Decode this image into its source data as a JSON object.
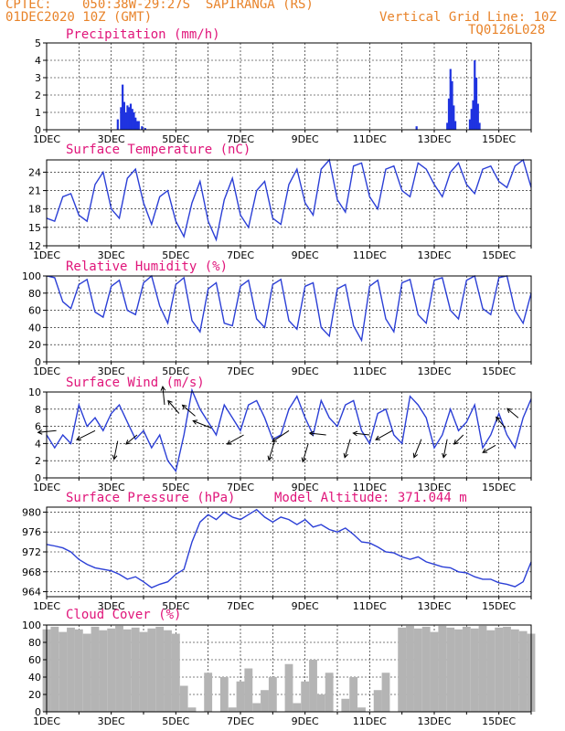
{
  "header": {
    "source": "CPTEC:",
    "location": "050:38W-29:27S  SAPIRANGA (RS)",
    "date": "01DEC2020 10Z (GMT)",
    "grid_note": "Vertical Grid Line: 10Z",
    "run_id": "TQ0126L028"
  },
  "colors": {
    "header": "#e8832a",
    "title": "#e0157a",
    "line": "#2b3fd6",
    "bar": "#1f33e0",
    "cloud": "#b4b4b4",
    "grid": "#000000"
  },
  "x_tick_labels": [
    "1DEC",
    "3DEC",
    "5DEC",
    "7DEC",
    "9DEC",
    "11DEC",
    "13DEC",
    "15DEC"
  ],
  "x_range_days": [
    0,
    15
  ],
  "chart_data": [
    {
      "id": "precip",
      "type": "bar",
      "title": "Precipitation (mm/h)",
      "ylim": [
        0,
        5
      ],
      "yticks": [
        0,
        1,
        2,
        3,
        4,
        5
      ],
      "x": [
        2.2,
        2.3,
        2.35,
        2.4,
        2.45,
        2.5,
        2.55,
        2.6,
        2.65,
        2.7,
        2.75,
        2.8,
        2.85,
        2.95,
        3.05,
        11.45,
        12.4,
        12.45,
        12.5,
        12.55,
        12.6,
        12.65,
        13.1,
        13.15,
        13.2,
        13.25,
        13.3,
        13.35,
        13.4
      ],
      "values": [
        0.6,
        1.3,
        2.6,
        1.6,
        1.0,
        1.4,
        1.3,
        1.5,
        1.2,
        1.0,
        0.7,
        0.5,
        0.5,
        0.2,
        0.1,
        0.2,
        0.4,
        1.8,
        3.5,
        2.8,
        1.4,
        0.5,
        0.6,
        1.2,
        1.7,
        4.0,
        3.0,
        1.5,
        0.4
      ]
    },
    {
      "id": "temp",
      "type": "line",
      "title": "Surface Temperature (nC)",
      "ylim": [
        12,
        26
      ],
      "yticks": [
        12,
        15,
        18,
        21,
        24
      ],
      "x": [
        0,
        0.25,
        0.5,
        0.75,
        1.0,
        1.25,
        1.5,
        1.75,
        2.0,
        2.25,
        2.5,
        2.75,
        3.0,
        3.25,
        3.5,
        3.75,
        4.0,
        4.25,
        4.5,
        4.75,
        5.0,
        5.25,
        5.5,
        5.75,
        6.0,
        6.25,
        6.5,
        6.75,
        7.0,
        7.25,
        7.5,
        7.75,
        8.0,
        8.25,
        8.5,
        8.75,
        9.0,
        9.25,
        9.5,
        9.75,
        10.0,
        10.25,
        10.5,
        10.75,
        11.0,
        11.25,
        11.5,
        11.75,
        12.0,
        12.25,
        12.5,
        12.75,
        13.0,
        13.25,
        13.5,
        13.75,
        14.0,
        14.25,
        14.5,
        14.75,
        15.0
      ],
      "values": [
        16.5,
        16.0,
        20.0,
        20.5,
        17.0,
        16.0,
        22.0,
        24.0,
        18.0,
        16.5,
        23.0,
        24.5,
        19.0,
        15.5,
        20.0,
        21.0,
        16.0,
        13.5,
        19.0,
        22.5,
        16.0,
        13.0,
        19.5,
        23.0,
        17.0,
        15.0,
        21.0,
        22.5,
        16.5,
        15.5,
        22.0,
        24.5,
        19.0,
        17.0,
        24.5,
        26.0,
        19.5,
        17.5,
        25.0,
        25.5,
        20.0,
        18.0,
        24.5,
        25.0,
        21.0,
        20.0,
        25.5,
        24.5,
        22.0,
        20.0,
        24.0,
        25.5,
        22.0,
        20.5,
        24.5,
        25.0,
        22.5,
        21.5,
        25.0,
        26.0,
        21.5
      ]
    },
    {
      "id": "rh",
      "type": "line",
      "title": "Relative Humidity (%)",
      "ylim": [
        0,
        100
      ],
      "yticks": [
        0,
        20,
        40,
        60,
        80,
        100
      ],
      "x": [
        0,
        0.25,
        0.5,
        0.75,
        1.0,
        1.25,
        1.5,
        1.75,
        2.0,
        2.25,
        2.5,
        2.75,
        3.0,
        3.25,
        3.5,
        3.75,
        4.0,
        4.25,
        4.5,
        4.75,
        5.0,
        5.25,
        5.5,
        5.75,
        6.0,
        6.25,
        6.5,
        6.75,
        7.0,
        7.25,
        7.5,
        7.75,
        8.0,
        8.25,
        8.5,
        8.75,
        9.0,
        9.25,
        9.5,
        9.75,
        10.0,
        10.25,
        10.5,
        10.75,
        11.0,
        11.25,
        11.5,
        11.75,
        12.0,
        12.25,
        12.5,
        12.75,
        13.0,
        13.25,
        13.5,
        13.75,
        14.0,
        14.25,
        14.5,
        14.75,
        15.0
      ],
      "values": [
        100,
        98,
        70,
        62,
        90,
        96,
        58,
        52,
        88,
        95,
        60,
        55,
        92,
        100,
        65,
        45,
        90,
        98,
        48,
        35,
        85,
        92,
        45,
        42,
        88,
        95,
        50,
        40,
        90,
        96,
        48,
        38,
        88,
        92,
        40,
        30,
        85,
        90,
        42,
        25,
        88,
        95,
        50,
        35,
        92,
        96,
        55,
        45,
        95,
        98,
        60,
        50,
        95,
        100,
        62,
        55,
        98,
        100,
        60,
        45,
        80
      ]
    },
    {
      "id": "wind",
      "type": "line",
      "title": "Surface Wind (m/s)",
      "ylim": [
        0,
        10
      ],
      "yticks": [
        0,
        2,
        4,
        6,
        8,
        10
      ],
      "x": [
        0,
        0.25,
        0.5,
        0.75,
        1.0,
        1.25,
        1.5,
        1.75,
        2.0,
        2.25,
        2.5,
        2.75,
        3.0,
        3.25,
        3.5,
        3.75,
        4.0,
        4.25,
        4.5,
        4.75,
        5.0,
        5.25,
        5.5,
        5.75,
        6.0,
        6.25,
        6.5,
        6.75,
        7.0,
        7.25,
        7.5,
        7.75,
        8.0,
        8.25,
        8.5,
        8.75,
        9.0,
        9.25,
        9.5,
        9.75,
        10.0,
        10.25,
        10.5,
        10.75,
        11.0,
        11.25,
        11.5,
        11.75,
        12.0,
        12.25,
        12.5,
        12.75,
        13.0,
        13.25,
        13.5,
        13.75,
        14.0,
        14.25,
        14.5,
        14.75,
        15.0
      ],
      "values": [
        5.0,
        3.5,
        5.0,
        4.0,
        8.5,
        6.0,
        7.0,
        5.5,
        7.5,
        8.5,
        6.5,
        4.5,
        5.5,
        3.5,
        5.0,
        2.0,
        0.8,
        5.0,
        10.2,
        8.0,
        6.5,
        5.0,
        8.5,
        7.0,
        5.5,
        8.5,
        9.0,
        7.0,
        4.5,
        5.0,
        8.0,
        9.5,
        7.0,
        5.0,
        9.0,
        7.0,
        6.0,
        8.5,
        9.0,
        5.5,
        4.0,
        7.5,
        8.0,
        5.0,
        4.0,
        9.5,
        8.5,
        7.0,
        3.5,
        5.0,
        8.0,
        5.5,
        6.5,
        8.5,
        3.5,
        5.0,
        7.5,
        5.0,
        3.5,
        7.0,
        9.2
      ],
      "arrows": [
        {
          "x": 0.3,
          "y": 5.5,
          "u": -1.0,
          "v": -0.1
        },
        {
          "x": 1.5,
          "y": 5.5,
          "u": -1.0,
          "v": -0.5
        },
        {
          "x": 2.2,
          "y": 4.3,
          "u": -0.2,
          "v": -1.0
        },
        {
          "x": 2.8,
          "y": 5.0,
          "u": -0.6,
          "v": -0.5
        },
        {
          "x": 3.65,
          "y": 8.5,
          "u": -0.1,
          "v": 1.0
        },
        {
          "x": 4.1,
          "y": 7.5,
          "u": -0.6,
          "v": 0.7
        },
        {
          "x": 4.6,
          "y": 7.2,
          "u": -0.7,
          "v": 0.6
        },
        {
          "x": 5.1,
          "y": 5.8,
          "u": -1.0,
          "v": 0.4
        },
        {
          "x": 6.1,
          "y": 5.0,
          "u": -0.9,
          "v": -0.5
        },
        {
          "x": 7.05,
          "y": 4.2,
          "u": -0.3,
          "v": -1.0
        },
        {
          "x": 7.5,
          "y": 5.5,
          "u": -0.9,
          "v": -0.6
        },
        {
          "x": 8.1,
          "y": 4.0,
          "u": -0.3,
          "v": -1.0
        },
        {
          "x": 8.65,
          "y": 5.0,
          "u": -0.9,
          "v": 0.1
        },
        {
          "x": 9.4,
          "y": 4.5,
          "u": -0.3,
          "v": -1.0
        },
        {
          "x": 10.0,
          "y": 5.0,
          "u": -0.9,
          "v": 0.1
        },
        {
          "x": 10.7,
          "y": 5.5,
          "u": -0.9,
          "v": -0.5
        },
        {
          "x": 11.6,
          "y": 4.5,
          "u": -0.4,
          "v": -1.0
        },
        {
          "x": 12.4,
          "y": 4.5,
          "u": -0.2,
          "v": -1.0
        },
        {
          "x": 12.9,
          "y": 5.0,
          "u": -0.5,
          "v": -0.5
        },
        {
          "x": 13.9,
          "y": 3.8,
          "u": -0.7,
          "v": -0.4
        },
        {
          "x": 14.2,
          "y": 5.8,
          "u": -0.5,
          "v": 0.6
        },
        {
          "x": 14.6,
          "y": 7.0,
          "u": -0.6,
          "v": 0.5
        }
      ]
    },
    {
      "id": "pres",
      "type": "line",
      "title": "Surface Pressure (hPa)",
      "annotation": "Model Altitude: 371.044 m",
      "ylim": [
        963,
        981
      ],
      "yticks": [
        964,
        968,
        972,
        976,
        980
      ],
      "x": [
        0,
        0.25,
        0.5,
        0.75,
        1.0,
        1.25,
        1.5,
        1.75,
        2.0,
        2.25,
        2.5,
        2.75,
        3.0,
        3.25,
        3.5,
        3.75,
        4.0,
        4.25,
        4.5,
        4.75,
        5.0,
        5.25,
        5.5,
        5.75,
        6.0,
        6.25,
        6.5,
        6.75,
        7.0,
        7.25,
        7.5,
        7.75,
        8.0,
        8.25,
        8.5,
        8.75,
        9.0,
        9.25,
        9.5,
        9.75,
        10.0,
        10.25,
        10.5,
        10.75,
        11.0,
        11.25,
        11.5,
        11.75,
        12.0,
        12.25,
        12.5,
        12.75,
        13.0,
        13.25,
        13.5,
        13.75,
        14.0,
        14.25,
        14.5,
        14.75,
        15.0
      ],
      "values": [
        973.5,
        973.2,
        972.8,
        972.0,
        970.5,
        969.5,
        968.8,
        968.5,
        968.2,
        967.5,
        966.5,
        967.0,
        966.0,
        964.8,
        965.5,
        966.0,
        967.5,
        968.5,
        974.0,
        978.0,
        979.5,
        978.5,
        980.0,
        979.0,
        978.5,
        979.5,
        980.5,
        979.0,
        978.0,
        979.0,
        978.5,
        977.5,
        978.5,
        977.0,
        977.5,
        976.5,
        976.0,
        976.8,
        975.5,
        974.0,
        973.8,
        973.0,
        972.0,
        971.8,
        971.0,
        970.5,
        971.0,
        970.0,
        969.5,
        969.0,
        968.8,
        968.0,
        967.8,
        967.0,
        966.5,
        966.5,
        965.8,
        965.5,
        965.0,
        966.0,
        970.0
      ]
    },
    {
      "id": "cloud",
      "type": "bar",
      "title": "Cloud Cover (%)",
      "ylim": [
        0,
        100
      ],
      "yticks": [
        0,
        20,
        40,
        60,
        80,
        100
      ],
      "x": [
        0,
        0.25,
        0.5,
        0.75,
        1.0,
        1.25,
        1.5,
        1.75,
        2.0,
        2.25,
        2.5,
        2.75,
        3.0,
        3.25,
        3.5,
        3.75,
        4.0,
        4.25,
        4.5,
        4.75,
        5.0,
        5.25,
        5.5,
        5.75,
        6.0,
        6.25,
        6.5,
        6.75,
        7.0,
        7.25,
        7.5,
        7.75,
        8.0,
        8.25,
        8.5,
        8.75,
        9.0,
        9.25,
        9.5,
        9.75,
        10.0,
        10.25,
        10.5,
        10.75,
        11.0,
        11.25,
        11.5,
        11.75,
        12.0,
        12.25,
        12.5,
        12.75,
        13.0,
        13.25,
        13.5,
        13.75,
        14.0,
        14.25,
        14.5,
        14.75,
        15.0
      ],
      "values": [
        95,
        98,
        92,
        97,
        95,
        90,
        98,
        94,
        96,
        99,
        95,
        97,
        92,
        96,
        98,
        94,
        90,
        30,
        5,
        0,
        45,
        0,
        40,
        5,
        35,
        50,
        10,
        25,
        40,
        0,
        55,
        10,
        35,
        60,
        20,
        45,
        0,
        15,
        40,
        5,
        0,
        25,
        45,
        0,
        97,
        99,
        96,
        98,
        92,
        99,
        97,
        95,
        98,
        96,
        99,
        94,
        97,
        98,
        95,
        93,
        90
      ]
    }
  ]
}
